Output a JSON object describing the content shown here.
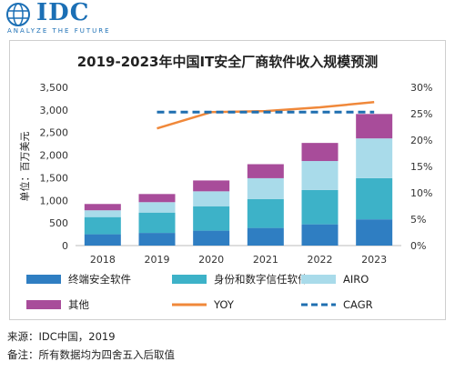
{
  "brand": {
    "name": "IDC",
    "tagline": "ANALYZE THE FUTURE"
  },
  "colors": {
    "brand": "#1b6fb5",
    "terminal": "#2f7ec2",
    "identity": "#3db2c8",
    "airo": "#a9dbea",
    "other": "#a84c9a",
    "yoy": "#f0883a",
    "cagr": "#1f6fb0"
  },
  "chart_data": {
    "type": "bar",
    "title": "2019-2023年中国IT安全厂商软件收入规模预测",
    "ylabel": "单位：百万美元",
    "ylim": [
      0,
      3500
    ],
    "y2lim": [
      0,
      0.3
    ],
    "y_ticks": [
      "0",
      "500",
      "1,000",
      "1,500",
      "2,000",
      "2,500",
      "3,000",
      "3,500"
    ],
    "y2_ticks": [
      "0%",
      "5%",
      "10%",
      "15%",
      "20%",
      "25%",
      "30%"
    ],
    "categories": [
      "2018",
      "2019",
      "2020",
      "2021",
      "2022",
      "2023"
    ],
    "series": [
      {
        "name": "终端安全软件",
        "kind": "bar",
        "color": "#2f7ec2",
        "values": [
          250,
          280,
          330,
          390,
          470,
          580
        ]
      },
      {
        "name": "身份和数字信任软件",
        "kind": "bar",
        "color": "#3db2c8",
        "values": [
          380,
          450,
          540,
          640,
          760,
          910
        ]
      },
      {
        "name": "AIRO",
        "kind": "bar",
        "color": "#a9dbea",
        "values": [
          150,
          230,
          330,
          460,
          640,
          880
        ]
      },
      {
        "name": "其他",
        "kind": "bar",
        "color": "#a84c9a",
        "values": [
          140,
          180,
          240,
          310,
          400,
          540
        ]
      },
      {
        "name": "YOY",
        "kind": "line",
        "color": "#f0883a",
        "axis": "right",
        "values": [
          null,
          0.222,
          0.253,
          0.255,
          0.262,
          0.272
        ]
      },
      {
        "name": "CAGR",
        "kind": "dashed-line",
        "color": "#1f6fb0",
        "axis": "right",
        "values": [
          null,
          0.253,
          0.253,
          0.253,
          0.253,
          0.253
        ]
      }
    ],
    "legend": {
      "placement": "bottom",
      "entries": [
        "终端安全软件",
        "身份和数字信任软件",
        "AIRO",
        "其他",
        "YOY",
        "CAGR"
      ]
    }
  },
  "notes": {
    "source": "来源：IDC中国，2019",
    "remark": "备注：所有数据均为四舍五入后取值"
  }
}
